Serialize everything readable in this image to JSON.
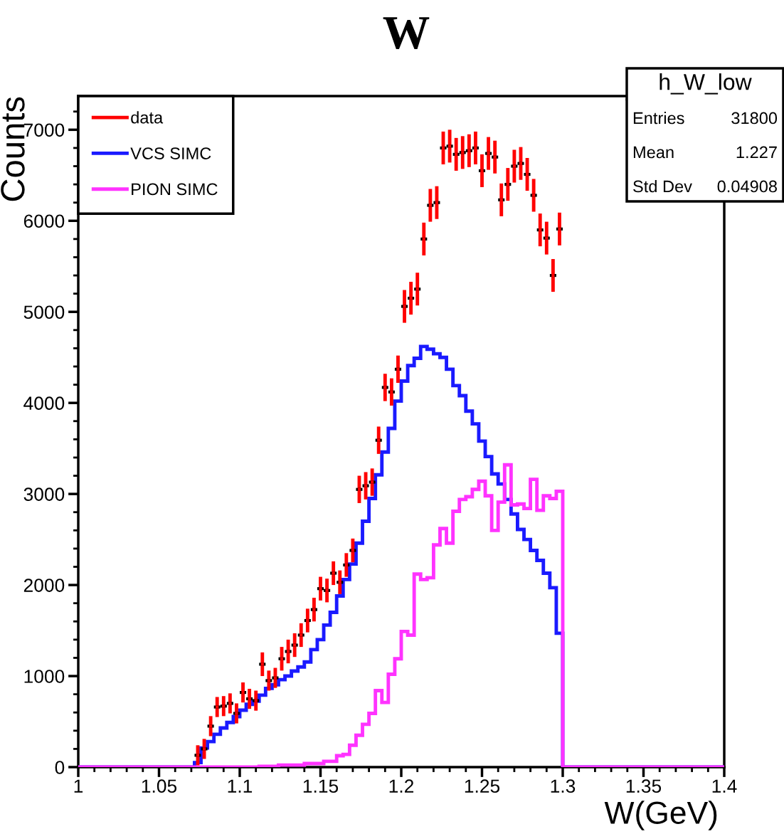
{
  "chart_data": {
    "type": "histogram",
    "title": "W",
    "xlabel": "W(GeV)",
    "ylabel": "Counts",
    "bins": [
      1.0,
      1.004,
      1.008,
      1.012,
      1.016,
      1.02,
      1.024,
      1.028,
      1.032,
      1.036,
      1.04,
      1.044,
      1.048,
      1.052,
      1.056,
      1.06,
      1.064,
      1.068,
      1.072,
      1.076,
      1.08,
      1.084,
      1.088,
      1.092,
      1.096,
      1.1,
      1.104,
      1.108,
      1.112,
      1.116,
      1.12,
      1.124,
      1.128,
      1.132,
      1.136,
      1.14,
      1.144,
      1.148,
      1.152,
      1.156,
      1.16,
      1.164,
      1.168,
      1.172,
      1.176,
      1.18,
      1.184,
      1.188,
      1.192,
      1.196,
      1.2,
      1.204,
      1.208,
      1.212,
      1.216,
      1.22,
      1.224,
      1.228,
      1.232,
      1.236,
      1.24,
      1.244,
      1.248,
      1.252,
      1.256,
      1.26,
      1.264,
      1.268,
      1.272,
      1.276,
      1.28,
      1.284,
      1.288,
      1.292,
      1.296,
      1.3,
      1.304,
      1.308,
      1.312,
      1.316,
      1.32,
      1.324,
      1.328,
      1.332,
      1.336,
      1.34,
      1.344,
      1.348,
      1.352,
      1.356,
      1.36,
      1.364,
      1.368,
      1.372,
      1.376,
      1.38,
      1.384,
      1.388,
      1.392,
      1.396,
      1.4
    ],
    "series": [
      {
        "name": "data",
        "type": "scatter",
        "color": "#ff0000",
        "marker": "square",
        "x": [
          1.074,
          1.078,
          1.082,
          1.086,
          1.09,
          1.094,
          1.098,
          1.102,
          1.106,
          1.11,
          1.114,
          1.118,
          1.122,
          1.126,
          1.13,
          1.134,
          1.138,
          1.142,
          1.146,
          1.15,
          1.154,
          1.158,
          1.162,
          1.166,
          1.17,
          1.174,
          1.178,
          1.182,
          1.186,
          1.19,
          1.194,
          1.198,
          1.202,
          1.206,
          1.21,
          1.214,
          1.218,
          1.222,
          1.226,
          1.23,
          1.234,
          1.238,
          1.242,
          1.246,
          1.25,
          1.254,
          1.258,
          1.262,
          1.266,
          1.27,
          1.274,
          1.278,
          1.282,
          1.286,
          1.29,
          1.294,
          1.298
        ],
        "values": [
          130,
          200,
          450,
          660,
          670,
          700,
          590,
          820,
          750,
          730,
          1130,
          950,
          980,
          1190,
          1270,
          1340,
          1450,
          1610,
          1730,
          1960,
          1940,
          2130,
          2030,
          2220,
          2380,
          3050,
          3090,
          3130,
          3590,
          4170,
          4120,
          4370,
          5060,
          5150,
          5250,
          5800,
          6170,
          6200,
          6800,
          6820,
          6730,
          6750,
          6770,
          6800,
          6550,
          6740,
          6700,
          6230,
          6400,
          6600,
          6630,
          6510,
          6280,
          5900,
          5810,
          5400,
          5910
        ],
        "errors": [
          110,
          110,
          110,
          110,
          110,
          110,
          110,
          110,
          110,
          110,
          130,
          110,
          110,
          130,
          130,
          130,
          130,
          130,
          130,
          130,
          130,
          130,
          130,
          130,
          130,
          150,
          150,
          150,
          150,
          150,
          150,
          150,
          180,
          180,
          180,
          180,
          180,
          180,
          180,
          180,
          180,
          180,
          180,
          180,
          180,
          180,
          180,
          180,
          180,
          180,
          180,
          180,
          180,
          180,
          180,
          180,
          180
        ],
        "xerrors": [
          0.002,
          0.002,
          0.002,
          0.002,
          0.002,
          0.002,
          0.002,
          0.002,
          0.002,
          0.002,
          0.002,
          0.002,
          0.002,
          0.002,
          0.002,
          0.002,
          0.002,
          0.002,
          0.002,
          0.002,
          0.002,
          0.002,
          0.002,
          0.002,
          0.002,
          0.002,
          0.002,
          0.002,
          0.002,
          0.002,
          0.002,
          0.002,
          0.002,
          0.002,
          0.002,
          0.002,
          0.002,
          0.002,
          0.002,
          0.002,
          0.002,
          0.002,
          0.002,
          0.002,
          0.002,
          0.002,
          0.002,
          0.002,
          0.002,
          0.002,
          0.002,
          0.002,
          0.002,
          0.002,
          0.002,
          0.002,
          0.002
        ]
      },
      {
        "name": "VCS SIMC",
        "color": "#1a1aff",
        "values": [
          0,
          0,
          0,
          0,
          0,
          0,
          0,
          0,
          0,
          0,
          0,
          0,
          0,
          0,
          0,
          0,
          0,
          0,
          50,
          210,
          280,
          360,
          430,
          490,
          555,
          625,
          690,
          725,
          790,
          865,
          905,
          960,
          1000,
          1055,
          1100,
          1155,
          1290,
          1400,
          1560,
          1700,
          1880,
          2060,
          2230,
          2460,
          2700,
          2950,
          3210,
          3460,
          3720,
          4020,
          4240,
          4410,
          4490,
          4620,
          4590,
          4540,
          4500,
          4370,
          4190,
          4080,
          3910,
          3770,
          3580,
          3410,
          3220,
          3110,
          2940,
          2780,
          2610,
          2500,
          2380,
          2270,
          2130,
          1970,
          1470,
          0,
          0,
          0,
          0,
          0,
          0,
          0,
          0,
          0,
          0,
          0,
          0,
          0,
          0,
          0,
          0,
          0,
          0,
          0,
          0,
          0,
          0,
          0,
          0,
          0
        ]
      },
      {
        "name": "PION SIMC",
        "color": "#ff33ff",
        "values": [
          0,
          0,
          0,
          0,
          0,
          0,
          0,
          0,
          0,
          0,
          0,
          0,
          0,
          0,
          0,
          0,
          0,
          0,
          0,
          0,
          0,
          0,
          0,
          0,
          0,
          0,
          0,
          0,
          8,
          8,
          8,
          23,
          23,
          23,
          23,
          39,
          39,
          39,
          63,
          63,
          125,
          140,
          240,
          350,
          470,
          590,
          840,
          710,
          1020,
          1190,
          1490,
          1450,
          2120,
          2060,
          2080,
          2440,
          2620,
          2460,
          2810,
          2940,
          2970,
          3050,
          3140,
          2980,
          2600,
          2910,
          3320,
          2880,
          2890,
          2840,
          3160,
          2820,
          2980,
          2950,
          3030,
          0,
          0,
          0,
          0,
          0,
          0,
          0,
          0,
          0,
          0,
          0,
          0,
          0,
          0,
          0,
          0,
          0,
          0,
          0,
          0,
          0,
          0,
          0,
          0,
          0
        ]
      }
    ],
    "xlim": [
      1.0,
      1.4
    ],
    "xticks": [
      1,
      1.05,
      1.1,
      1.15,
      1.2,
      1.25,
      1.3,
      1.35,
      1.4
    ],
    "ylim": [
      0,
      7370
    ],
    "yticks": [
      0,
      1000,
      2000,
      3000,
      4000,
      5000,
      6000,
      7000
    ],
    "grid": false,
    "legend": "top left",
    "annotations": [
      "h_W_low",
      "Entries",
      "31800",
      "Mean",
      "1.227",
      "Std Dev",
      "0.04908"
    ]
  }
}
